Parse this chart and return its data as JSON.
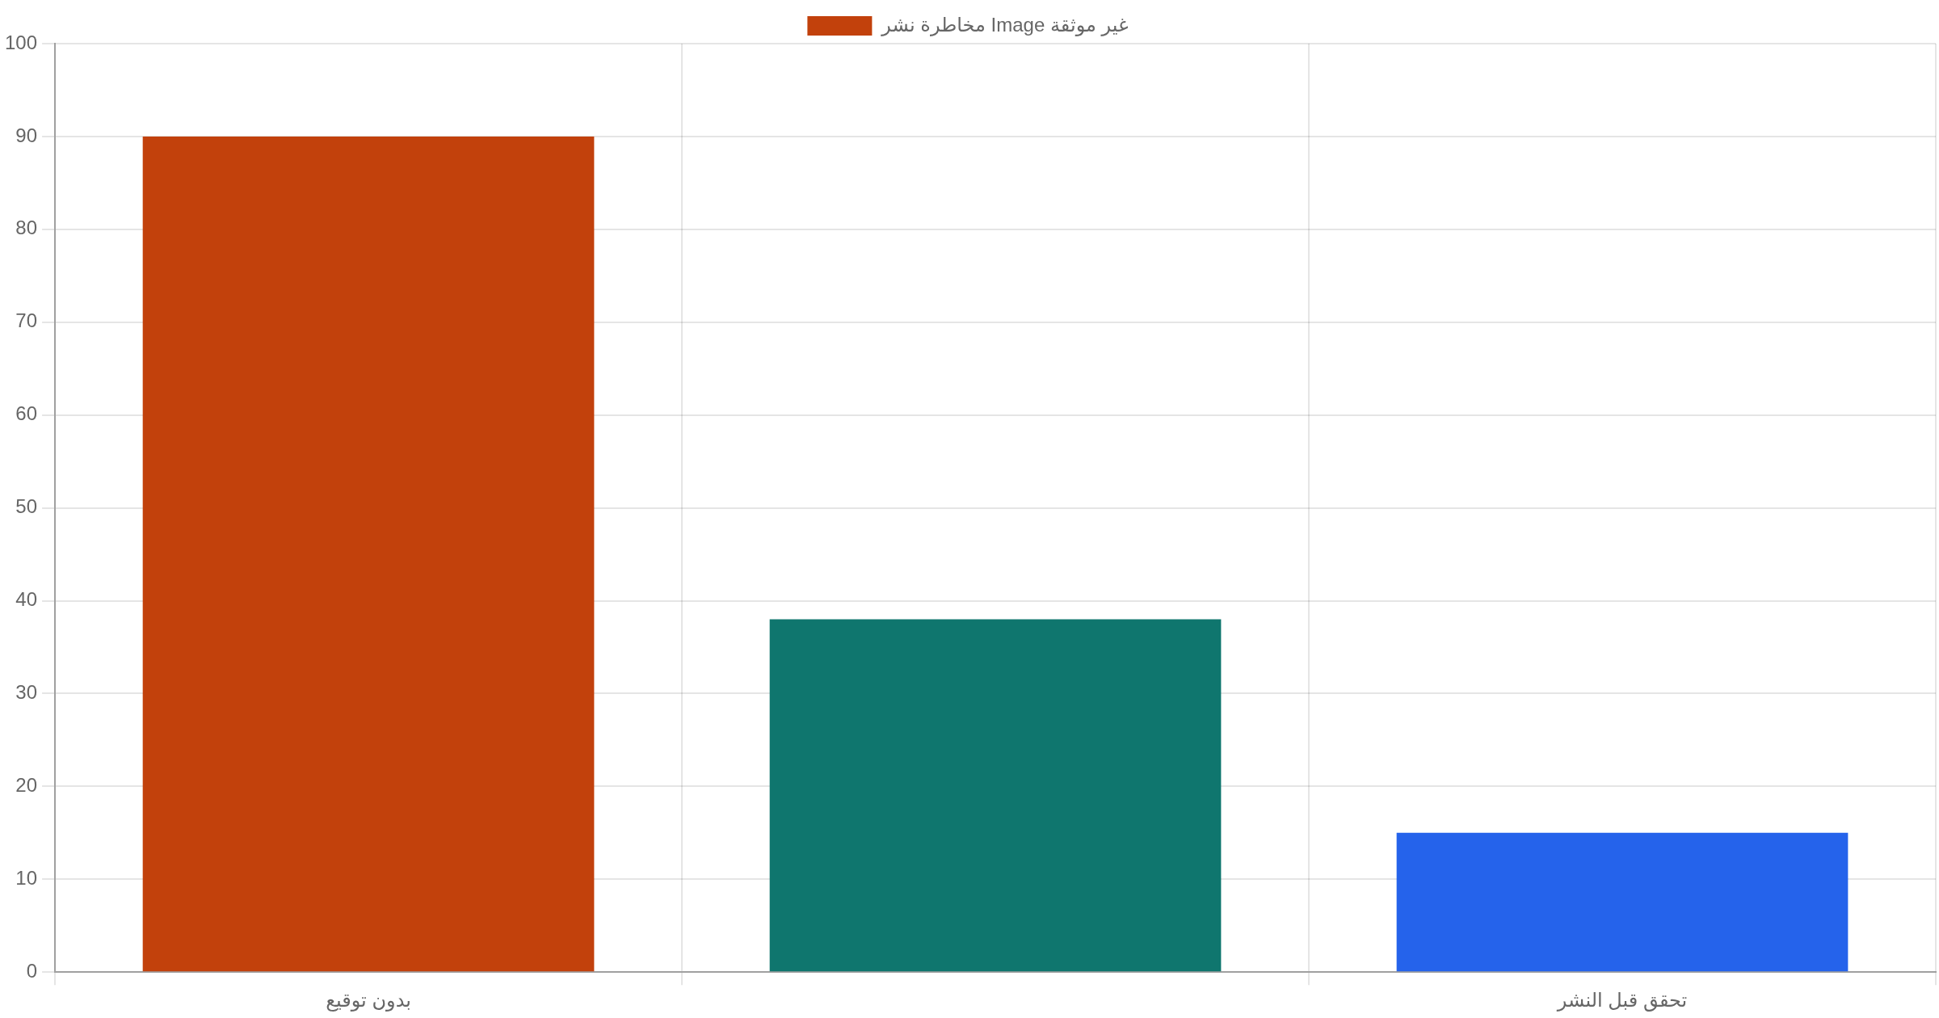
{
  "chart_data": {
    "type": "bar",
    "categories": [
      "بدون توقيع",
      null,
      "تحقق قبل النشر"
    ],
    "series": [
      {
        "name": "مخاطرة نشر Image غير موثقة",
        "colors": [
          "#c2410c",
          "#0f766e",
          "#2563eb"
        ],
        "values": [
          90,
          38,
          15
        ]
      }
    ],
    "ylim": [
      0,
      100
    ],
    "yticks": [
      0,
      10,
      20,
      30,
      40,
      50,
      60,
      70,
      80,
      90,
      100
    ],
    "grid": true,
    "legend": "top"
  }
}
